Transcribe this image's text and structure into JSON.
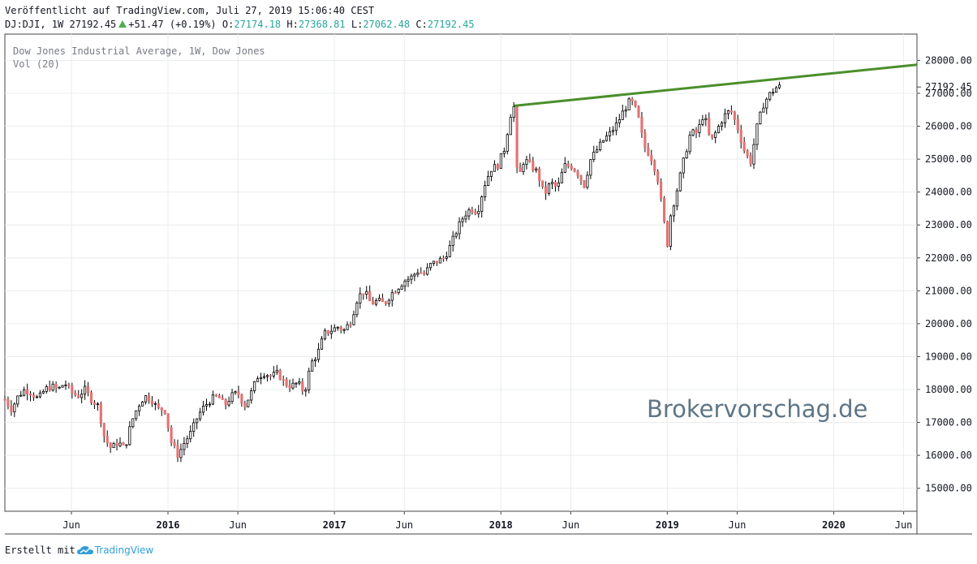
{
  "header": {
    "line1": "Veröffentlicht auf TradingView.com, Juli 27, 2019 15:06:40 CEST",
    "symbol": "DJ:DJI, 1W 27192.45",
    "change": "+51.47 (+0.19%)",
    "o_label": "O:",
    "o_val": "27174.18",
    "h_label": "H:",
    "h_val": "27368.81",
    "l_label": "L:",
    "l_val": "27062.48",
    "c_label": "C:",
    "c_val": "27192.45"
  },
  "legend": {
    "title": "Dow Jones Industrial Average, 1W, Dow Jones",
    "vol": "Vol (20)"
  },
  "watermark": "Brokervorschag.de",
  "footer": {
    "made_with": "Erstellt mit",
    "brand": "TradingView"
  },
  "colors": {
    "up": "#ffffff",
    "down": "#e57373",
    "wick": "#000000",
    "trendline": "#4a8f2a",
    "grid": "#e9ecef"
  },
  "chart_data": {
    "type": "candlestick",
    "title": "Dow Jones Industrial Average, 1W, Dow Jones",
    "ylim": [
      14300,
      28800
    ],
    "y_ticks": [
      "28000.00",
      "27000.00",
      "26000.00",
      "25000.00",
      "24000.00",
      "23000.00",
      "22000.00",
      "21000.00",
      "20000.00",
      "19000.00",
      "18000.00",
      "17000.00",
      "16000.00",
      "15000.00"
    ],
    "last_price_label": "27192.45",
    "x_ticks": [
      {
        "label": "Jun",
        "t": 2015.42
      },
      {
        "label": "2016",
        "t": 2016.0
      },
      {
        "label": "Jun",
        "t": 2016.42
      },
      {
        "label": "2017",
        "t": 2017.0
      },
      {
        "label": "Jun",
        "t": 2017.42
      },
      {
        "label": "2018",
        "t": 2018.0
      },
      {
        "label": "Jun",
        "t": 2018.42
      },
      {
        "label": "2019",
        "t": 2019.0
      },
      {
        "label": "Jun",
        "t": 2019.42
      },
      {
        "label": "2020",
        "t": 2020.0
      },
      {
        "label": "Jun",
        "t": 2020.42
      }
    ],
    "x_range": [
      2015.02,
      2020.5
    ],
    "close_path": [
      [
        2015.02,
        17700
      ],
      [
        2015.06,
        17400
      ],
      [
        2015.1,
        17800
      ],
      [
        2015.14,
        18000
      ],
      [
        2015.18,
        17900
      ],
      [
        2015.22,
        17700
      ],
      [
        2015.26,
        18000
      ],
      [
        2015.3,
        18100
      ],
      [
        2015.34,
        18000
      ],
      [
        2015.38,
        18200
      ],
      [
        2015.42,
        17900
      ],
      [
        2015.46,
        17800
      ],
      [
        2015.5,
        18000
      ],
      [
        2015.54,
        17700
      ],
      [
        2015.58,
        17500
      ],
      [
        2015.62,
        16500
      ],
      [
        2015.66,
        16200
      ],
      [
        2015.7,
        16400
      ],
      [
        2015.74,
        16200
      ],
      [
        2015.78,
        17000
      ],
      [
        2015.82,
        17500
      ],
      [
        2015.86,
        17800
      ],
      [
        2015.9,
        17700
      ],
      [
        2015.94,
        17400
      ],
      [
        2015.98,
        17400
      ],
      [
        2016.02,
        16400
      ],
      [
        2016.06,
        16000
      ],
      [
        2016.1,
        16400
      ],
      [
        2016.14,
        16700
      ],
      [
        2016.18,
        17200
      ],
      [
        2016.22,
        17500
      ],
      [
        2016.26,
        17700
      ],
      [
        2016.3,
        17800
      ],
      [
        2016.34,
        17500
      ],
      [
        2016.38,
        17800
      ],
      [
        2016.42,
        17900
      ],
      [
        2016.46,
        17500
      ],
      [
        2016.5,
        17900
      ],
      [
        2016.54,
        18400
      ],
      [
        2016.58,
        18500
      ],
      [
        2016.62,
        18400
      ],
      [
        2016.66,
        18500
      ],
      [
        2016.7,
        18200
      ],
      [
        2016.74,
        18100
      ],
      [
        2016.78,
        18200
      ],
      [
        2016.82,
        17900
      ],
      [
        2016.86,
        18800
      ],
      [
        2016.9,
        19100
      ],
      [
        2016.94,
        19700
      ],
      [
        2016.98,
        19800
      ],
      [
        2017.02,
        19900
      ],
      [
        2017.06,
        19800
      ],
      [
        2017.1,
        20100
      ],
      [
        2017.14,
        20800
      ],
      [
        2017.18,
        21000
      ],
      [
        2017.22,
        20600
      ],
      [
        2017.26,
        20700
      ],
      [
        2017.3,
        20600
      ],
      [
        2017.34,
        20900
      ],
      [
        2017.38,
        21100
      ],
      [
        2017.42,
        21300
      ],
      [
        2017.46,
        21400
      ],
      [
        2017.5,
        21600
      ],
      [
        2017.54,
        21500
      ],
      [
        2017.58,
        21800
      ],
      [
        2017.62,
        21900
      ],
      [
        2017.66,
        22000
      ],
      [
        2017.7,
        22400
      ],
      [
        2017.74,
        22900
      ],
      [
        2017.78,
        23300
      ],
      [
        2017.82,
        23500
      ],
      [
        2017.86,
        23400
      ],
      [
        2017.9,
        24200
      ],
      [
        2017.94,
        24700
      ],
      [
        2017.98,
        24800
      ],
      [
        2018.02,
        25300
      ],
      [
        2018.06,
        26400
      ],
      [
        2018.08,
        26600
      ],
      [
        2018.1,
        24300
      ],
      [
        2018.14,
        25000
      ],
      [
        2018.18,
        24800
      ],
      [
        2018.22,
        24600
      ],
      [
        2018.26,
        23900
      ],
      [
        2018.3,
        24300
      ],
      [
        2018.34,
        24100
      ],
      [
        2018.38,
        24800
      ],
      [
        2018.42,
        24800
      ],
      [
        2018.46,
        24600
      ],
      [
        2018.5,
        24200
      ],
      [
        2018.54,
        25000
      ],
      [
        2018.58,
        25300
      ],
      [
        2018.62,
        25600
      ],
      [
        2018.66,
        25800
      ],
      [
        2018.7,
        26100
      ],
      [
        2018.74,
        26500
      ],
      [
        2018.78,
        26800
      ],
      [
        2018.82,
        26400
      ],
      [
        2018.86,
        25400
      ],
      [
        2018.9,
        25100
      ],
      [
        2018.94,
        24500
      ],
      [
        2018.98,
        23100
      ],
      [
        2019.0,
        22400
      ],
      [
        2019.02,
        23300
      ],
      [
        2019.06,
        24100
      ],
      [
        2019.1,
        25000
      ],
      [
        2019.14,
        25800
      ],
      [
        2019.18,
        25800
      ],
      [
        2019.22,
        26400
      ],
      [
        2019.26,
        25500
      ],
      [
        2019.3,
        25900
      ],
      [
        2019.34,
        26300
      ],
      [
        2019.38,
        26500
      ],
      [
        2019.42,
        26000
      ],
      [
        2019.46,
        25300
      ],
      [
        2019.5,
        24900
      ],
      [
        2019.54,
        26000
      ],
      [
        2019.58,
        26700
      ],
      [
        2019.62,
        27000
      ],
      [
        2019.66,
        27200
      ],
      [
        2019.68,
        27192
      ]
    ],
    "trendline": {
      "from": [
        2018.08,
        26620
      ],
      "to": [
        2020.5,
        27870
      ],
      "label": ""
    }
  }
}
